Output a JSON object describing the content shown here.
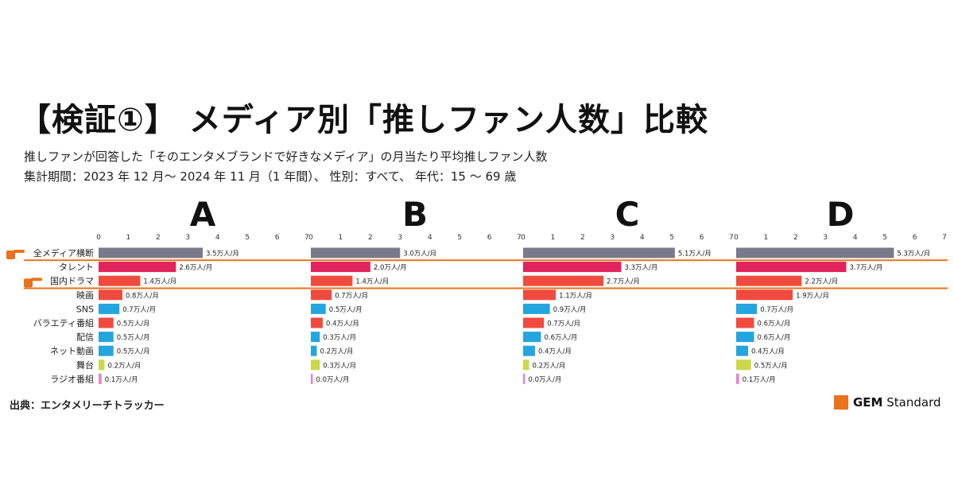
{
  "title": "【検証①】 メディア別「推しファン人数」比較",
  "subtitle": "推しファンが回答した「そのエンタメブランドで好きなメディア」の月当たり平均推しファン人数",
  "period": "集計期間：2023 年 12 月～ 2024 年 11 月（1 年間）、 性別：すべて、 年代：15 ～ 69 歳",
  "source": "出典：エンタメリーチトラッカー",
  "logo": {
    "brand": "GEM",
    "text": "Standard",
    "color": "#e8731c"
  },
  "colors": {
    "highlight_line": "#e8731c",
    "pointer_icon": "#e8731c"
  },
  "chart_data": {
    "type": "bar",
    "orientation": "horizontal",
    "categories": [
      "全メディア横断",
      "タレント",
      "国内ドラマ",
      "映画",
      "SNS",
      "バラエティ番組",
      "配信",
      "ネット動画",
      "舞台",
      "ラジオ番組"
    ],
    "highlighted_categories": [
      "全メディア横断",
      "国内ドラマ"
    ],
    "bar_colors": [
      "#7a7a8c",
      "#e0245e",
      "#f04b3e",
      "#f04b3e",
      "#25a5e0",
      "#f04b3e",
      "#25a5e0",
      "#25a5e0",
      "#c9d94a",
      "#e385d0"
    ],
    "label_unit": "万人/月",
    "xlim": [
      0,
      7
    ],
    "x_ticks": [
      "0",
      "1",
      "2",
      "3",
      "4",
      "5",
      "6",
      "7"
    ],
    "panels": [
      {
        "name": "A",
        "values": [
          3.5,
          2.6,
          1.4,
          0.8,
          0.7,
          0.5,
          0.5,
          0.5,
          0.2,
          0.1
        ],
        "labels": [
          "3.5",
          "2.6",
          "1.4",
          "0.8",
          "0.7",
          "0.5",
          "0.5",
          "0.5",
          "0.2",
          "0.1"
        ]
      },
      {
        "name": "B",
        "values": [
          3.0,
          2.0,
          1.4,
          0.7,
          0.5,
          0.4,
          0.3,
          0.2,
          0.3,
          0.0
        ],
        "labels": [
          "3.0",
          "2.0",
          "1.4",
          "0.7",
          "0.5",
          "0.4",
          "0.3",
          "0.2",
          "0.3",
          "0.0"
        ]
      },
      {
        "name": "C",
        "values": [
          5.1,
          3.3,
          2.7,
          1.1,
          0.9,
          0.7,
          0.6,
          0.4,
          0.2,
          0.0
        ],
        "labels": [
          "5.1",
          "3.3",
          "2.7",
          "1.1",
          "0.9",
          "0.7",
          "0.6",
          "0.4",
          "0.2",
          "0.0"
        ]
      },
      {
        "name": "D",
        "values": [
          5.3,
          3.7,
          2.2,
          1.9,
          0.7,
          0.6,
          0.6,
          0.4,
          0.5,
          0.1
        ],
        "labels": [
          "5.3",
          "3.7",
          "2.2",
          "1.9",
          "0.7",
          "0.6",
          "0.6",
          "0.4",
          "0.5",
          "0.1"
        ]
      }
    ]
  }
}
